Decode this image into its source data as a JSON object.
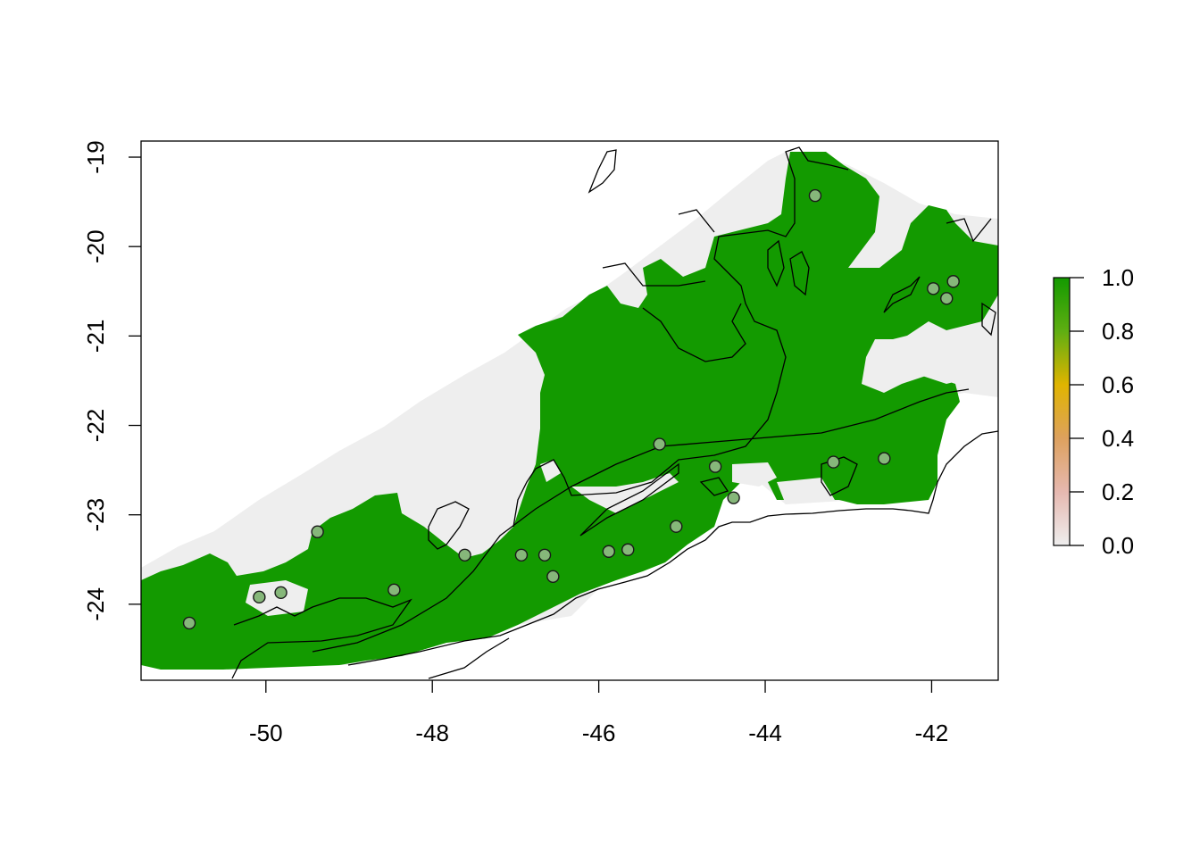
{
  "chart_data": {
    "type": "map",
    "xlabel": "",
    "ylabel": "",
    "xlim": [
      -51.5,
      -41.2
    ],
    "ylim": [
      -24.85,
      -18.82
    ],
    "x_ticks": [
      -50,
      -48,
      -46,
      -44,
      -42
    ],
    "y_ticks": [
      -19,
      -20,
      -21,
      -22,
      -23,
      -24
    ],
    "x_tick_labels": [
      "-50",
      "-48",
      "-46",
      "-44",
      "-42"
    ],
    "y_tick_labels": [
      "-19",
      "-20",
      "-21",
      "-22",
      "-23",
      "-24"
    ],
    "legend": {
      "position": "right",
      "range": [
        0.0,
        1.0
      ],
      "ticks": [
        "0.0",
        "0.2",
        "0.4",
        "0.6",
        "0.8",
        "1.0"
      ],
      "colors": [
        "#eeeeee",
        "#e6b8b0",
        "#dda15e",
        "#e0b400",
        "#5fae12",
        "#139a00"
      ]
    },
    "raster_colors": {
      "suitable": "#139a00",
      "unsuitable": "#eeeeee"
    },
    "occurrence_points": [
      {
        "x": -43.4,
        "y": -19.43
      },
      {
        "x": -41.98,
        "y": -20.47
      },
      {
        "x": -41.82,
        "y": -20.58
      },
      {
        "x": -41.74,
        "y": -20.39
      },
      {
        "x": -45.27,
        "y": -22.21
      },
      {
        "x": -44.6,
        "y": -22.46
      },
      {
        "x": -43.18,
        "y": -22.41
      },
      {
        "x": -42.57,
        "y": -22.37
      },
      {
        "x": -44.38,
        "y": -22.81
      },
      {
        "x": -45.07,
        "y": -23.13
      },
      {
        "x": -49.38,
        "y": -23.19
      },
      {
        "x": -47.61,
        "y": -23.45
      },
      {
        "x": -46.93,
        "y": -23.45
      },
      {
        "x": -46.65,
        "y": -23.45
      },
      {
        "x": -46.55,
        "y": -23.69
      },
      {
        "x": -45.88,
        "y": -23.41
      },
      {
        "x": -45.65,
        "y": -23.39
      },
      {
        "x": -48.46,
        "y": -23.84
      },
      {
        "x": -49.82,
        "y": -23.87
      },
      {
        "x": -50.08,
        "y": -23.92
      },
      {
        "x": -50.92,
        "y": -24.21
      }
    ]
  }
}
